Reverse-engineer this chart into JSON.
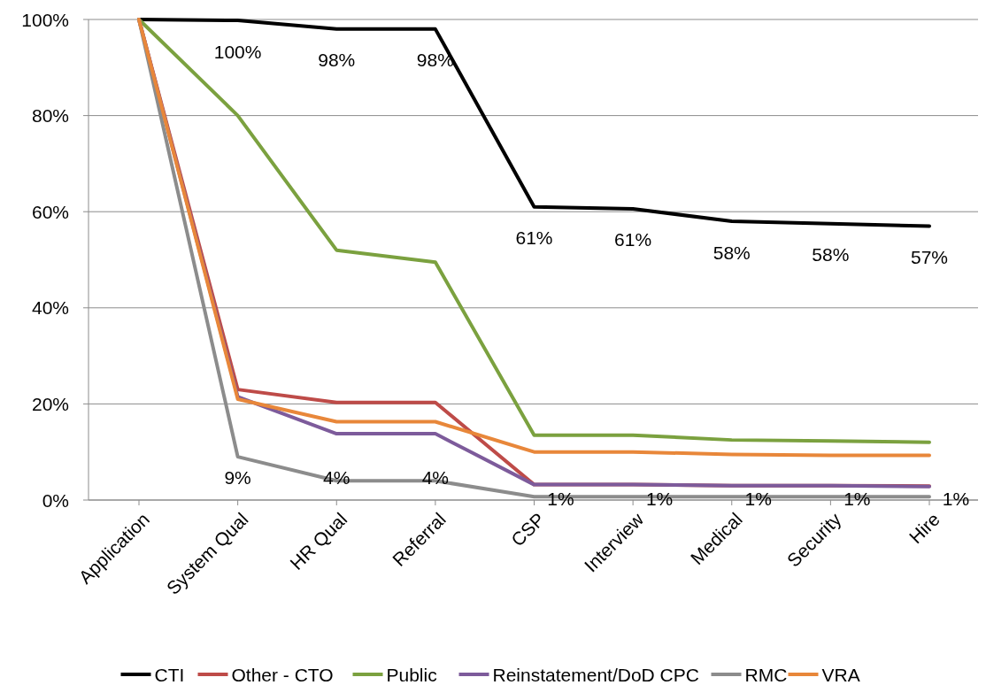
{
  "chart_data": {
    "type": "line",
    "categories": [
      "Application",
      "System Qual",
      "HR Qual",
      "Referral",
      "CSP",
      "Interview",
      "Medical",
      "Security",
      "Hire"
    ],
    "series": [
      {
        "name": "CTI",
        "color": "#000000",
        "values": [
          100,
          99.8,
          98,
          98,
          61,
          60.6,
          58,
          57.5,
          57
        ],
        "value_labels": [
          null,
          "100%",
          "98%",
          "98%",
          "61%",
          "61%",
          "58%",
          "58%",
          "57%"
        ]
      },
      {
        "name": "Other - CTO",
        "color": "#be4b48",
        "values": [
          100,
          23,
          20.3,
          20.3,
          3.2,
          3.2,
          3,
          3,
          2.9
        ]
      },
      {
        "name": "Public",
        "color": "#7ba13f",
        "values": [
          100,
          80,
          52,
          49.5,
          13.5,
          13.5,
          12.5,
          12.3,
          12
        ]
      },
      {
        "name": "Reinstatement/DoD CPC",
        "color": "#7d5b9b",
        "values": [
          100,
          21.5,
          13.8,
          13.8,
          3.2,
          3.2,
          3,
          3,
          2.8
        ]
      },
      {
        "name": "RMC",
        "color": "#8c8c8c",
        "values": [
          100,
          9,
          4,
          4,
          0.7,
          0.7,
          0.7,
          0.7,
          0.7
        ],
        "value_labels": [
          null,
          "9%",
          "4%",
          "4%",
          "1%",
          "1%",
          "1%",
          "1%",
          "1%"
        ]
      },
      {
        "name": "VRA",
        "color": "#e8873a",
        "values": [
          100,
          21,
          16.3,
          16.3,
          10,
          10,
          9.5,
          9.3,
          9.3
        ]
      }
    ],
    "ylim": [
      0,
      100
    ],
    "yticks": [
      {
        "value": 0,
        "label": "0%"
      },
      {
        "value": 20,
        "label": "20%"
      },
      {
        "value": 40,
        "label": "40%"
      },
      {
        "value": 60,
        "label": "60%"
      },
      {
        "value": 80,
        "label": "80%"
      },
      {
        "value": 100,
        "label": "100%"
      }
    ],
    "grid": "y",
    "legend": "bottom",
    "marker": "none",
    "line_style": "solid"
  }
}
